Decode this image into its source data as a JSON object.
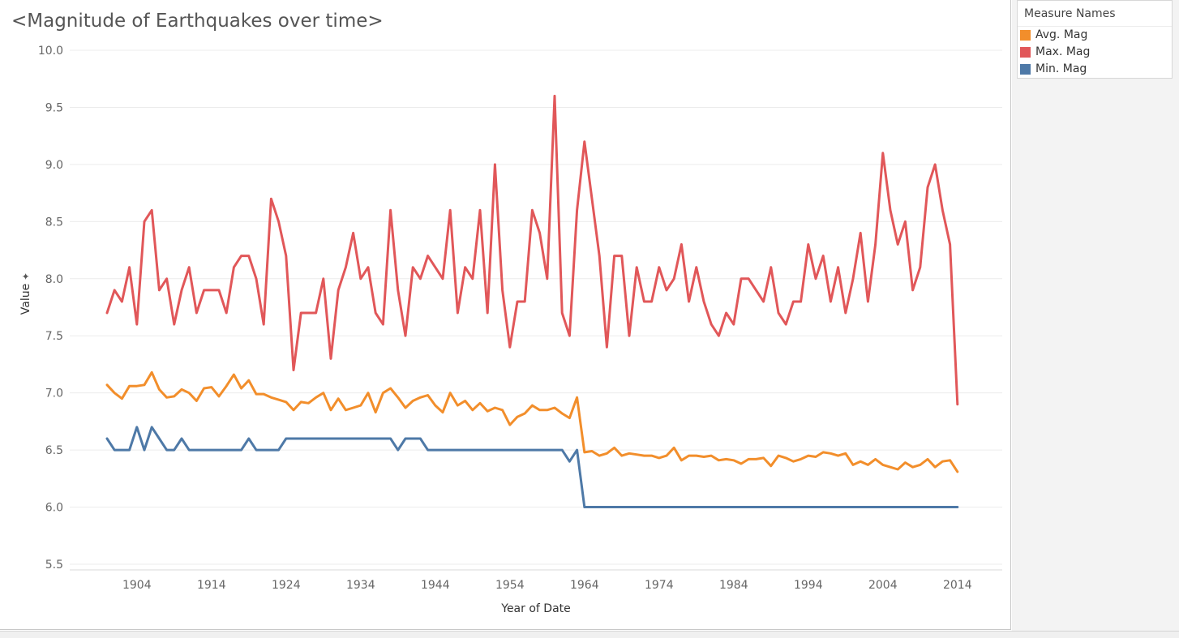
{
  "chart_data": {
    "type": "line",
    "title": "<Magnitude of Earthquakes over time>",
    "xlabel": "Year of Date",
    "ylabel": "Value",
    "xlim": [
      1895,
      2020
    ],
    "ylim": [
      5.45,
      10.05
    ],
    "x_ticks": [
      1904,
      1914,
      1924,
      1934,
      1944,
      1954,
      1964,
      1974,
      1984,
      1994,
      2004,
      2014
    ],
    "y_ticks": [
      "5.5",
      "6.0",
      "6.5",
      "7.0",
      "7.5",
      "8.0",
      "8.5",
      "9.0",
      "9.5",
      "10.0"
    ],
    "legend_title": "Measure Names",
    "legend_position": "top-right",
    "x": [
      1900,
      1901,
      1902,
      1903,
      1904,
      1905,
      1906,
      1907,
      1908,
      1909,
      1910,
      1911,
      1912,
      1913,
      1914,
      1915,
      1916,
      1917,
      1918,
      1919,
      1920,
      1921,
      1922,
      1923,
      1924,
      1925,
      1926,
      1927,
      1928,
      1929,
      1930,
      1931,
      1932,
      1933,
      1934,
      1935,
      1936,
      1937,
      1938,
      1939,
      1940,
      1941,
      1942,
      1943,
      1944,
      1945,
      1946,
      1947,
      1948,
      1949,
      1950,
      1951,
      1952,
      1953,
      1954,
      1955,
      1956,
      1957,
      1958,
      1959,
      1960,
      1961,
      1962,
      1963,
      1964,
      1965,
      1966,
      1967,
      1968,
      1969,
      1970,
      1971,
      1972,
      1973,
      1974,
      1975,
      1976,
      1977,
      1978,
      1979,
      1980,
      1981,
      1982,
      1983,
      1984,
      1985,
      1986,
      1987,
      1988,
      1989,
      1990,
      1991,
      1992,
      1993,
      1994,
      1995,
      1996,
      1997,
      1998,
      1999,
      2000,
      2001,
      2002,
      2003,
      2004,
      2005,
      2006,
      2007,
      2008,
      2009,
      2010,
      2011,
      2012,
      2013,
      2014
    ],
    "series": [
      {
        "name": "Avg. Mag",
        "color": "#f28e2b",
        "values": [
          7.07,
          7.0,
          6.95,
          7.06,
          7.06,
          7.07,
          7.18,
          7.03,
          6.96,
          6.97,
          7.03,
          7.0,
          6.93,
          7.04,
          7.05,
          6.97,
          7.06,
          7.16,
          7.04,
          7.11,
          6.99,
          6.99,
          6.96,
          6.94,
          6.92,
          6.85,
          6.92,
          6.91,
          6.96,
          7.0,
          6.85,
          6.95,
          6.85,
          6.87,
          6.89,
          7.0,
          6.83,
          7.0,
          7.04,
          6.96,
          6.87,
          6.93,
          6.96,
          6.98,
          6.89,
          6.83,
          7.0,
          6.89,
          6.93,
          6.85,
          6.91,
          6.84,
          6.87,
          6.85,
          6.72,
          6.79,
          6.82,
          6.89,
          6.85,
          6.85,
          6.87,
          6.82,
          6.78,
          6.96,
          6.48,
          6.49,
          6.45,
          6.47,
          6.52,
          6.45,
          6.47,
          6.46,
          6.45,
          6.45,
          6.43,
          6.45,
          6.52,
          6.41,
          6.45,
          6.45,
          6.44,
          6.45,
          6.41,
          6.42,
          6.41,
          6.38,
          6.42,
          6.42,
          6.43,
          6.36,
          6.45,
          6.43,
          6.4,
          6.42,
          6.45,
          6.44,
          6.48,
          6.47,
          6.45,
          6.47,
          6.37,
          6.4,
          6.37,
          6.42,
          6.37,
          6.35,
          6.33,
          6.39,
          6.35,
          6.37,
          6.42,
          6.35,
          6.4,
          6.41,
          6.31
        ]
      },
      {
        "name": "Max. Mag",
        "color": "#e15759",
        "values": [
          7.7,
          7.9,
          7.8,
          8.1,
          7.6,
          8.5,
          8.6,
          7.9,
          8.0,
          7.6,
          7.9,
          8.1,
          7.7,
          7.9,
          7.9,
          7.9,
          7.7,
          8.1,
          8.2,
          8.2,
          8.0,
          7.6,
          8.7,
          8.5,
          8.2,
          7.2,
          7.7,
          7.7,
          7.7,
          8.0,
          7.3,
          7.9,
          8.1,
          8.4,
          8.0,
          8.1,
          7.7,
          7.6,
          8.6,
          7.9,
          7.5,
          8.1,
          8.0,
          8.2,
          8.1,
          8.0,
          8.6,
          7.7,
          8.1,
          8.0,
          8.6,
          7.7,
          9.0,
          7.9,
          7.4,
          7.8,
          7.8,
          8.6,
          8.4,
          8.0,
          9.6,
          7.7,
          7.5,
          8.6,
          9.2,
          8.7,
          8.2,
          7.4,
          8.2,
          8.2,
          7.5,
          8.1,
          7.8,
          7.8,
          8.1,
          7.9,
          8.0,
          8.3,
          7.8,
          8.1,
          7.8,
          7.6,
          7.5,
          7.7,
          7.6,
          8.0,
          8.0,
          7.9,
          7.8,
          8.1,
          7.7,
          7.6,
          7.8,
          7.8,
          8.3,
          8.0,
          8.2,
          7.8,
          8.1,
          7.7,
          8.0,
          8.4,
          7.8,
          8.3,
          9.1,
          8.6,
          8.3,
          8.5,
          7.9,
          8.1,
          8.8,
          9.0,
          8.6,
          8.3,
          6.9
        ]
      },
      {
        "name": "Min. Mag",
        "color": "#4e79a7",
        "values": [
          6.6,
          6.5,
          6.5,
          6.5,
          6.7,
          6.5,
          6.7,
          6.6,
          6.5,
          6.5,
          6.6,
          6.5,
          6.5,
          6.5,
          6.5,
          6.5,
          6.5,
          6.5,
          6.5,
          6.6,
          6.5,
          6.5,
          6.5,
          6.5,
          6.6,
          6.6,
          6.6,
          6.6,
          6.6,
          6.6,
          6.6,
          6.6,
          6.6,
          6.6,
          6.6,
          6.6,
          6.6,
          6.6,
          6.6,
          6.5,
          6.6,
          6.6,
          6.6,
          6.5,
          6.5,
          6.5,
          6.5,
          6.5,
          6.5,
          6.5,
          6.5,
          6.5,
          6.5,
          6.5,
          6.5,
          6.5,
          6.5,
          6.5,
          6.5,
          6.5,
          6.5,
          6.5,
          6.4,
          6.5,
          6.0,
          6.0,
          6.0,
          6.0,
          6.0,
          6.0,
          6.0,
          6.0,
          6.0,
          6.0,
          6.0,
          6.0,
          6.0,
          6.0,
          6.0,
          6.0,
          6.0,
          6.0,
          6.0,
          6.0,
          6.0,
          6.0,
          6.0,
          6.0,
          6.0,
          6.0,
          6.0,
          6.0,
          6.0,
          6.0,
          6.0,
          6.0,
          6.0,
          6.0,
          6.0,
          6.0,
          6.0,
          6.0,
          6.0,
          6.0,
          6.0,
          6.0,
          6.0,
          6.0,
          6.0,
          6.0,
          6.0,
          6.0,
          6.0,
          6.0,
          6.0
        ]
      }
    ]
  }
}
